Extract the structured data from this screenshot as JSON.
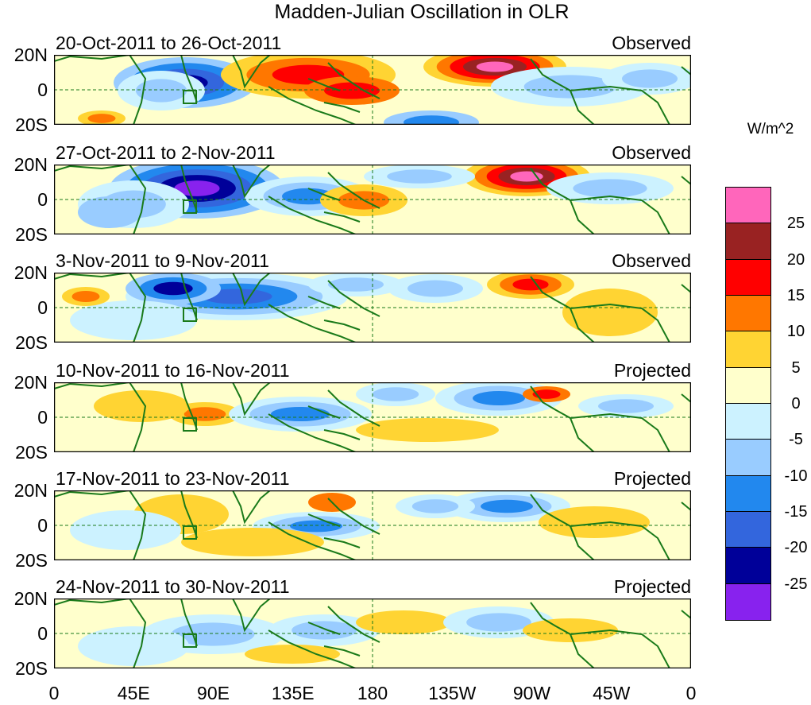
{
  "title": "Madden-Julian Oscillation in OLR",
  "panels": [
    {
      "period": "20-Oct-2011 to 26-Oct-2011",
      "status": "Observed"
    },
    {
      "period": "27-Oct-2011 to 2-Nov-2011",
      "status": "Observed"
    },
    {
      "period": "3-Nov-2011 to 9-Nov-2011",
      "status": "Observed"
    },
    {
      "period": "10-Nov-2011 to 16-Nov-2011",
      "status": "Projected"
    },
    {
      "period": "17-Nov-2011 to 23-Nov-2011",
      "status": "Projected"
    },
    {
      "period": "24-Nov-2011 to 30-Nov-2011",
      "status": "Projected"
    }
  ],
  "lat_labels": [
    "20N",
    "0",
    "20S"
  ],
  "lon_labels": [
    "0",
    "45E",
    "90E",
    "135E",
    "180",
    "135W",
    "90W",
    "45W",
    "0"
  ],
  "colorbar": {
    "units": "W/m^2",
    "colors": [
      "#ff66bb",
      "#992222",
      "#ff0000",
      "#ff7700",
      "#ffd433",
      "#ffffcc",
      "#ccf2ff",
      "#99ccff",
      "#2288ee",
      "#3366dd",
      "#000099",
      "#8822ee"
    ],
    "labels": [
      "25",
      "20",
      "15",
      "10",
      "5",
      "0",
      "-5",
      "-10",
      "-15",
      "-20",
      "-25"
    ]
  }
}
